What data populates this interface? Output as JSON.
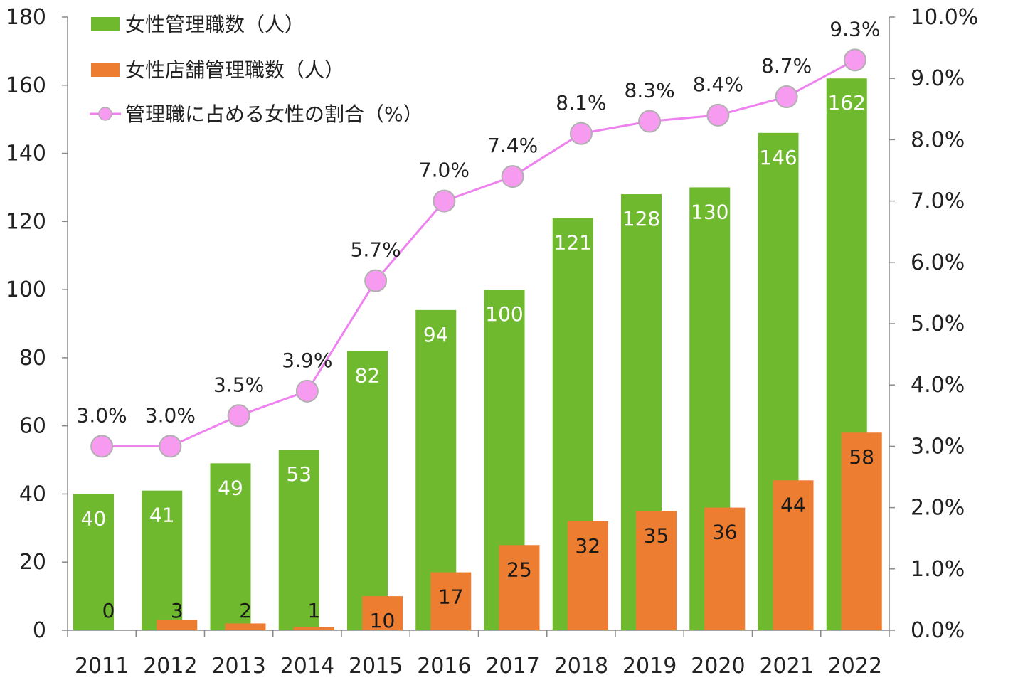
{
  "chart_data": {
    "type": "bar",
    "categories": [
      "2011",
      "2012",
      "2013",
      "2014",
      "2015",
      "2016",
      "2017",
      "2018",
      "2019",
      "2020",
      "2021",
      "2022"
    ],
    "series": [
      {
        "name": "女性管理職数（人）",
        "type": "bar",
        "axis": "left",
        "color": "#6fb92e",
        "values": [
          40,
          41,
          49,
          53,
          82,
          94,
          100,
          121,
          128,
          130,
          146,
          162
        ],
        "labels": [
          "40",
          "41",
          "49",
          "53",
          "82",
          "94",
          "100",
          "121",
          "128",
          "130",
          "146",
          "162"
        ]
      },
      {
        "name": "女性店舗管理職数（人）",
        "type": "bar",
        "axis": "left",
        "color": "#ed7d31",
        "values": [
          0,
          3,
          2,
          1,
          10,
          17,
          25,
          32,
          35,
          36,
          44,
          58
        ],
        "labels": [
          "0",
          "3",
          "2",
          "1",
          "10",
          "17",
          "25",
          "32",
          "35",
          "36",
          "44",
          "58"
        ]
      },
      {
        "name": "管理職に占める女性の割合（%）",
        "type": "line",
        "axis": "right",
        "color": "#ee82ee",
        "marker_fill": "#f79bf0",
        "values": [
          3.0,
          3.0,
          3.5,
          3.9,
          5.7,
          7.0,
          7.4,
          8.1,
          8.3,
          8.4,
          8.7,
          9.3
        ],
        "labels": [
          "3.0%",
          "3.0%",
          "3.5%",
          "3.9%",
          "5.7%",
          "7.0%",
          "7.4%",
          "8.1%",
          "8.3%",
          "8.4%",
          "8.7%",
          "9.3%"
        ]
      }
    ],
    "y_left": {
      "lim": [
        0,
        180
      ],
      "ticks": [
        0,
        20,
        40,
        60,
        80,
        100,
        120,
        140,
        160,
        180
      ],
      "tick_labels": [
        "0",
        "20",
        "40",
        "60",
        "80",
        "100",
        "120",
        "140",
        "160",
        "180"
      ]
    },
    "y_right": {
      "lim": [
        0,
        10
      ],
      "ticks": [
        0,
        1,
        2,
        3,
        4,
        5,
        6,
        7,
        8,
        9,
        10
      ],
      "tick_labels": [
        "0.0%",
        "1.0%",
        "2.0%",
        "3.0%",
        "4.0%",
        "5.0%",
        "6.0%",
        "7.0%",
        "8.0%",
        "9.0%",
        "10.0%"
      ]
    },
    "grid": false,
    "legend_position": "top-left"
  }
}
